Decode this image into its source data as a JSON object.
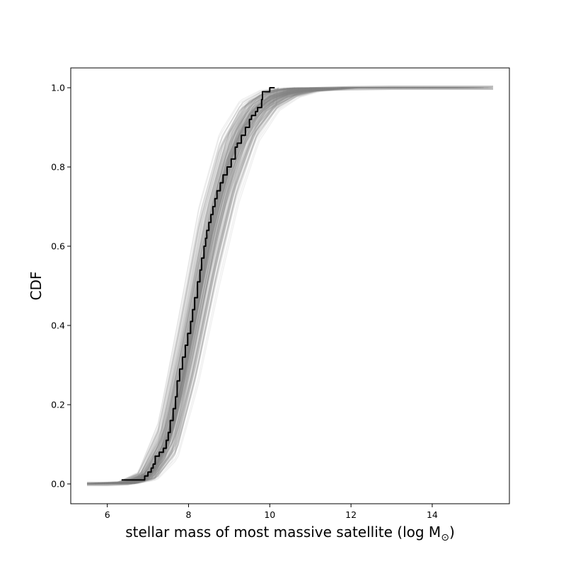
{
  "chart_data": {
    "type": "line",
    "title": "",
    "xlabel": "stellar mass of most massive satellite (log M",
    "xlabel_subscript": "⊙",
    "xlabel_suffix": ")",
    "ylabel": "CDF",
    "xlim": [
      5.1,
      15.9
    ],
    "ylim": [
      -0.05,
      1.05
    ],
    "xticks": [
      {
        "value": 6,
        "label": "6"
      },
      {
        "value": 8,
        "label": "8"
      },
      {
        "value": 10,
        "label": "10"
      },
      {
        "value": 12,
        "label": "12"
      },
      {
        "value": 14,
        "label": "14"
      }
    ],
    "yticks": [
      {
        "value": 0.0,
        "label": "0.0"
      },
      {
        "value": 0.2,
        "label": "0.2"
      },
      {
        "value": 0.4,
        "label": "0.4"
      },
      {
        "value": 0.6,
        "label": "0.6"
      },
      {
        "value": 0.8,
        "label": "0.8"
      },
      {
        "value": 1.0,
        "label": "1.0"
      }
    ],
    "grid": false,
    "legend": "none",
    "series": [
      {
        "role": "simulated realizations (many faint gray CDFs)",
        "color": "#808080",
        "realizations": 200,
        "x_range": [
          5.5,
          15.5
        ],
        "median_curve": {
          "x": [
            5.5,
            6.0,
            6.5,
            6.9,
            7.2,
            7.5,
            7.8,
            8.0,
            8.2,
            8.4,
            8.6,
            8.8,
            9.0,
            9.3,
            9.6,
            10.0,
            10.5,
            11.0,
            12.0,
            13.0,
            14.0,
            15.5
          ],
          "y": [
            0.0,
            0.0,
            0.002,
            0.01,
            0.04,
            0.11,
            0.23,
            0.34,
            0.45,
            0.57,
            0.67,
            0.75,
            0.82,
            0.89,
            0.94,
            0.975,
            0.99,
            0.996,
            0.999,
            1.0,
            1.0,
            1.0
          ]
        },
        "band_low": {
          "x": [
            5.5,
            6.5,
            7.0,
            7.5,
            8.0,
            8.5,
            9.0,
            9.5,
            10.0,
            10.5,
            11.0,
            12.0
          ],
          "y": [
            0.0,
            0.0,
            0.01,
            0.06,
            0.24,
            0.48,
            0.7,
            0.86,
            0.94,
            0.975,
            0.99,
            1.0
          ]
        },
        "band_high": {
          "x": [
            5.5,
            6.5,
            7.0,
            7.5,
            8.0,
            8.5,
            9.0,
            9.5,
            10.0,
            10.5,
            11.0,
            12.0
          ],
          "y": [
            0.0,
            0.005,
            0.03,
            0.16,
            0.43,
            0.71,
            0.89,
            0.97,
            0.995,
            1.0,
            1.0,
            1.0
          ]
        }
      },
      {
        "role": "observed CDF (black step line)",
        "color": "#000000",
        "x": [
          6.35,
          6.92,
          7.0,
          7.08,
          7.13,
          7.18,
          7.28,
          7.38,
          7.45,
          7.5,
          7.55,
          7.62,
          7.68,
          7.72,
          7.78,
          7.85,
          7.92,
          7.98,
          8.05,
          8.1,
          8.15,
          8.22,
          8.28,
          8.32,
          8.38,
          8.42,
          8.45,
          8.5,
          8.55,
          8.6,
          8.65,
          8.7,
          8.78,
          8.85,
          8.95,
          9.05,
          9.15,
          9.2,
          9.3,
          9.4,
          9.5,
          9.55,
          9.65,
          9.7,
          9.8,
          9.82,
          10.0,
          10.12
        ],
        "y": [
          0.01,
          0.02,
          0.03,
          0.04,
          0.05,
          0.07,
          0.08,
          0.09,
          0.11,
          0.13,
          0.16,
          0.19,
          0.22,
          0.26,
          0.29,
          0.32,
          0.35,
          0.38,
          0.41,
          0.44,
          0.47,
          0.51,
          0.54,
          0.57,
          0.6,
          0.62,
          0.64,
          0.66,
          0.68,
          0.7,
          0.72,
          0.74,
          0.76,
          0.78,
          0.8,
          0.82,
          0.85,
          0.86,
          0.88,
          0.9,
          0.92,
          0.93,
          0.94,
          0.95,
          0.97,
          0.99,
          1.0,
          1.0
        ]
      }
    ]
  }
}
